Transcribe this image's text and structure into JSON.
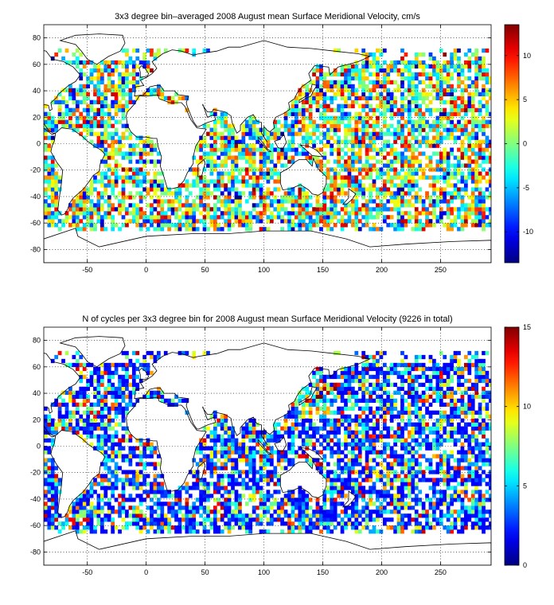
{
  "chart_data": [
    {
      "type": "heatmap",
      "title": "3x3 degree bin–averaged 2008 August mean Surface Meridional Velocity, cm/s",
      "xlim": [
        -87,
        293
      ],
      "ylim": [
        -90,
        90
      ],
      "x_ticks": [
        -50,
        0,
        50,
        100,
        150,
        200,
        250
      ],
      "y_ticks": [
        -80,
        -60,
        -40,
        -20,
        0,
        20,
        40,
        60,
        80
      ],
      "bin_size_deg": 3,
      "grid": true,
      "colorbar": {
        "min": -13.5,
        "max": 13.5,
        "ticks": [
          -10,
          -5,
          0,
          5,
          10
        ],
        "colormap": "jet",
        "placement": "right"
      }
    },
    {
      "type": "heatmap",
      "title": "N of cycles per 3x3 degree bin for 2008 August mean Surface Meridional Velocity (9226 in total)",
      "xlim": [
        -87,
        293
      ],
      "ylim": [
        -90,
        90
      ],
      "x_ticks": [
        -50,
        0,
        50,
        100,
        150,
        200,
        250
      ],
      "y_ticks": [
        -80,
        -60,
        -40,
        -20,
        0,
        20,
        40,
        60,
        80
      ],
      "bin_size_deg": 3,
      "grid": true,
      "colorbar": {
        "min": 0,
        "max": 15,
        "ticks": [
          0,
          5,
          10,
          15
        ],
        "colormap": "jet",
        "placement": "right"
      }
    }
  ]
}
